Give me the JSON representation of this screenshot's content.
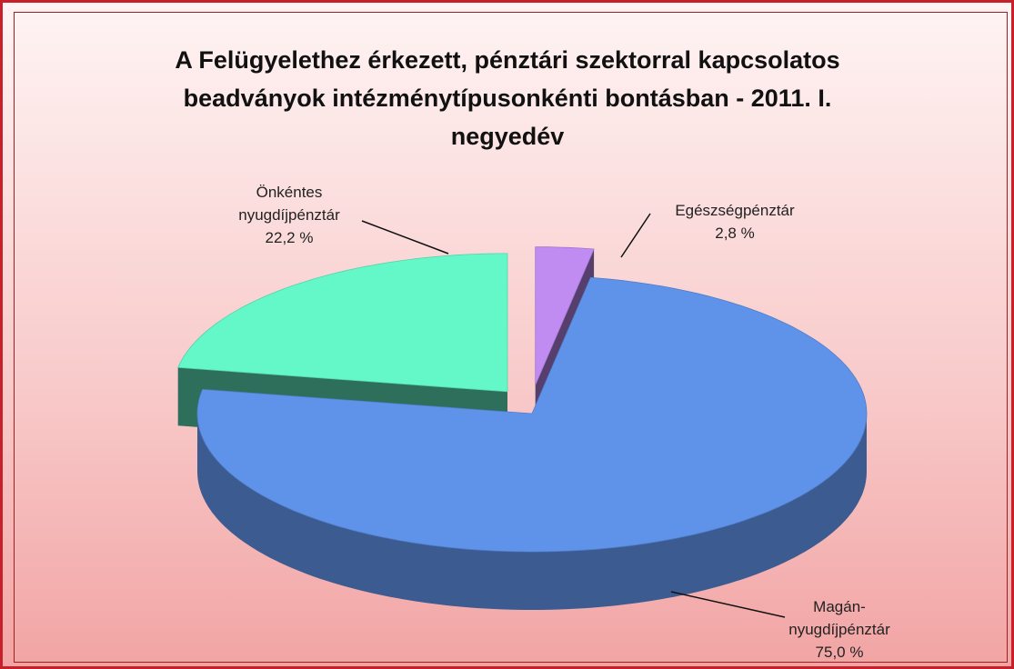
{
  "chart_data": {
    "type": "pie3d",
    "title": "A Felügyelethez érkezett, pénztári szektorral kapcsolatos beadványok intézménytípusonkénti bontásban - 2011. I. negyedév",
    "categories": [
      "Egészségpénztár",
      "Magán-nyugdíjpénztár",
      "Önkéntes nyugdíjpénztár"
    ],
    "values": [
      2.8,
      75.0,
      22.2
    ],
    "value_labels": [
      "2,8 %",
      "75,0 %",
      "22,2 %"
    ],
    "colors": [
      "#c08cf2",
      "#5f93ea",
      "#64f7c8"
    ]
  }
}
